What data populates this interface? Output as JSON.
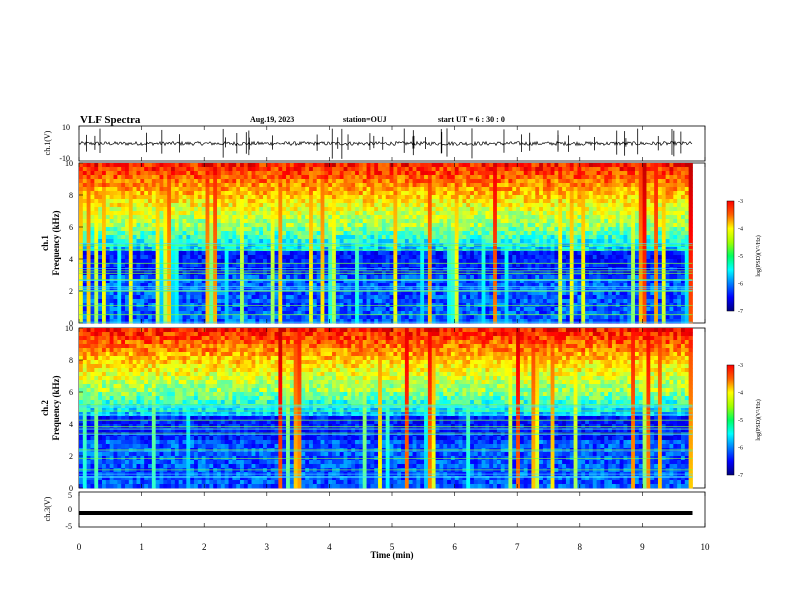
{
  "header": {
    "title": "VLF Spectra",
    "date": "Aug.19, 2023",
    "station": "station=OUJ",
    "start_ut": "start UT =  6 : 30 : 0"
  },
  "chart_data": [
    {
      "type": "line",
      "panel": "ch1-waveform",
      "ylabel": "ch.1(V)",
      "ylim": [
        -10,
        10
      ],
      "yticks": [
        "10",
        "-10"
      ],
      "xlim": [
        0,
        10
      ],
      "baseline": 0,
      "color": "#000000"
    },
    {
      "type": "heatmap",
      "panel": "ch1-spectrogram",
      "ylabel_top": "ch.1",
      "ylabel": "Frequency  (kHz)",
      "ylim": [
        0,
        10
      ],
      "yticks": [
        "0",
        "2",
        "4",
        "6",
        "8",
        "10"
      ],
      "xlim": [
        0,
        9.8
      ],
      "colorbar": {
        "label": "log(PSD)(V²/Hz)",
        "range": [
          -7,
          -3
        ],
        "ticks": [
          "-3",
          "-4",
          "-5",
          "-6",
          "-7"
        ]
      },
      "palette": "jet"
    },
    {
      "type": "heatmap",
      "panel": "ch2-spectrogram",
      "ylabel_top": "ch.2",
      "ylabel": "Frequency  (kHz)",
      "ylim": [
        0,
        10
      ],
      "yticks": [
        "0",
        "2",
        "4",
        "6",
        "8",
        "10"
      ],
      "xlim": [
        0,
        9.8
      ],
      "colorbar": {
        "label": "log(PSD)(V²/Hz)",
        "range": [
          -7,
          -3
        ],
        "ticks": [
          "-3",
          "-4",
          "-5",
          "-6",
          "-7"
        ]
      },
      "palette": "jet"
    },
    {
      "type": "line",
      "panel": "ch3-waveform",
      "ylabel": "ch.3(V)",
      "ylim": [
        -5,
        5
      ],
      "yticks": [
        "5",
        "0",
        "-5"
      ],
      "xlim": [
        0,
        10
      ],
      "level": -1,
      "color": "#000000"
    }
  ],
  "xaxis": {
    "label": "Time  (min)",
    "ticks": [
      "0",
      "1",
      "2",
      "3",
      "4",
      "5",
      "6",
      "7",
      "8",
      "9",
      "10"
    ],
    "range": [
      0,
      10
    ]
  }
}
